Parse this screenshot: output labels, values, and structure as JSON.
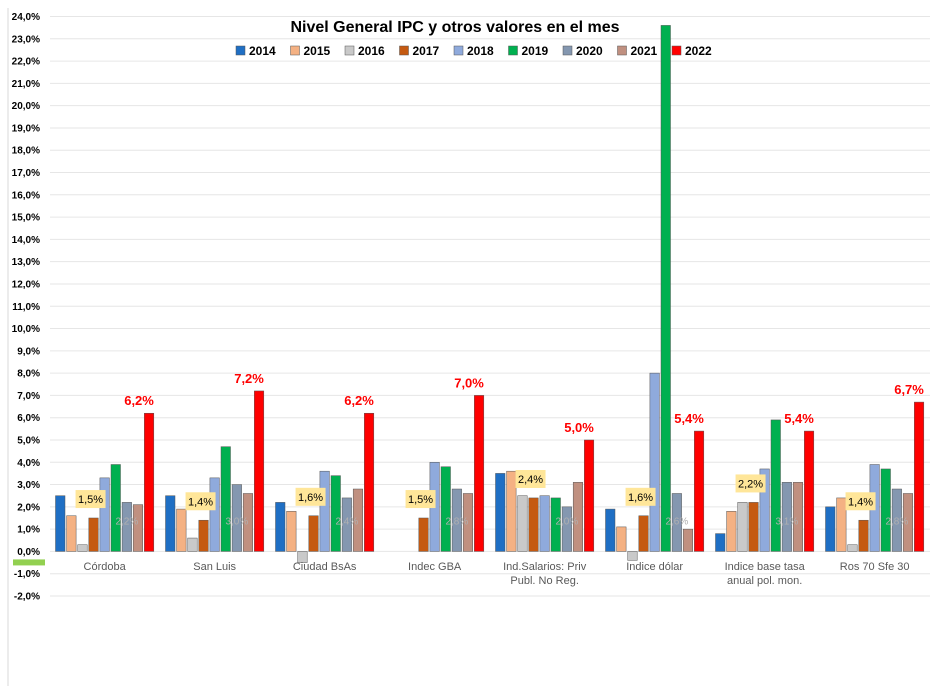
{
  "chart_data": {
    "type": "bar",
    "title": "Nivel General  IPC y otros valores en el mes",
    "categories": [
      [
        "Córdoba"
      ],
      [
        "San Luis"
      ],
      [
        "Ciudad BsAs"
      ],
      [
        "Indec  GBA"
      ],
      [
        "Ind.Salarios: Priv",
        "Publ. No Reg."
      ],
      [
        "Indice dólar"
      ],
      [
        "Indice base tasa",
        "anual pol. mon."
      ],
      [
        "Ros 70 Sfe 30"
      ]
    ],
    "ylim": [
      -2.0,
      24.0
    ],
    "ytick_step": 1.0,
    "y_tick_labels": [
      "-2,0%",
      "-1,0%",
      "0,0%",
      "1,0%",
      "2,0%",
      "3,0%",
      "4,0%",
      "5,0%",
      "6,0%",
      "7,0%",
      "8,0%",
      "9,0%",
      "10,0%",
      "11,0%",
      "12,0%",
      "13,0%",
      "14,0%",
      "15,0%",
      "16,0%",
      "17,0%",
      "18,0%",
      "19,0%",
      "20,0%",
      "21,0%",
      "22,0%",
      "23,0%",
      "24,0%"
    ],
    "legend_position": "top",
    "series": [
      {
        "name": "2014",
        "color": "#1f6fc4",
        "values": [
          2.5,
          2.5,
          2.2,
          null,
          3.5,
          1.9,
          0.8,
          2.0
        ]
      },
      {
        "name": "2015",
        "color": "#f4b183",
        "values": [
          1.6,
          1.9,
          1.8,
          null,
          3.6,
          1.1,
          1.8,
          2.4
        ]
      },
      {
        "name": "2016",
        "color": "#c9c9c9",
        "values": [
          0.3,
          0.6,
          -0.5,
          null,
          2.5,
          -0.4,
          2.2,
          0.3
        ]
      },
      {
        "name": "2017",
        "color": "#c55a11",
        "values": [
          1.5,
          1.4,
          1.6,
          1.5,
          2.4,
          1.6,
          2.2,
          1.4
        ]
      },
      {
        "name": "2018",
        "color": "#8faadc",
        "values": [
          3.3,
          3.3,
          3.6,
          4.0,
          2.5,
          8.0,
          3.7,
          3.9
        ]
      },
      {
        "name": "2019",
        "color": "#00b050",
        "values": [
          3.9,
          4.7,
          3.4,
          3.8,
          2.4,
          23.6,
          5.9,
          3.7
        ]
      },
      {
        "name": "2020",
        "color": "#8497b0",
        "values": [
          2.2,
          3.0,
          2.4,
          2.8,
          2.0,
          2.6,
          3.1,
          2.8
        ]
      },
      {
        "name": "2021",
        "color": "#c09080",
        "values": [
          2.1,
          2.6,
          2.8,
          2.6,
          3.1,
          1.0,
          3.1,
          2.6
        ]
      },
      {
        "name": "2022",
        "color": "#ff0000",
        "values": [
          6.2,
          7.2,
          6.2,
          7.0,
          5.0,
          5.4,
          5.4,
          6.7
        ]
      }
    ],
    "labels_2022": [
      "6,2%",
      "7,2%",
      "6,2%",
      "7,0%",
      "5,0%",
      "5,4%",
      "5,4%",
      "6,7%"
    ],
    "labels_2017": [
      "1,5%",
      "1,4%",
      "1,6%",
      "1,5%",
      "2,4%",
      "1,6%",
      "2,2%",
      "1,4%"
    ],
    "labels_2020": [
      "2,2%",
      "3,0%",
      "2,4%",
      "2,8%",
      "2,0%",
      "2,6%",
      "3,1%",
      "2,8%"
    ],
    "highlight_color_2017": "#ffe699",
    "negative_marker_color": "#92d050"
  }
}
